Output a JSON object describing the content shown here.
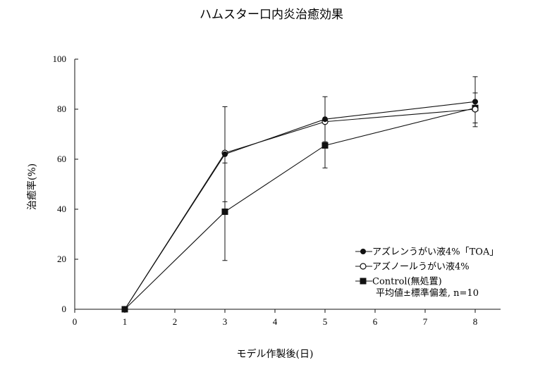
{
  "chart_data": {
    "type": "line",
    "title": "ハムスター口内炎治癒効果",
    "xlabel": "モデル作製後(日)",
    "ylabel": "治癒率(%)",
    "xlim": [
      0,
      8.5
    ],
    "ylim": [
      0,
      105
    ],
    "xticks": [
      0,
      1,
      2,
      3,
      4,
      5,
      6,
      7,
      8
    ],
    "yticks": [
      0,
      20,
      40,
      60,
      80,
      100
    ],
    "x": [
      1,
      3,
      5,
      8
    ],
    "grid": false,
    "legend_position": "bottom-right",
    "series": [
      {
        "name": "アズレンうがい液4%「TOA」",
        "marker": "filled-circle",
        "values": [
          0,
          62,
          76,
          83
        ],
        "errors": [
          0,
          19,
          9,
          10
        ]
      },
      {
        "name": "アズノールうがい液4%",
        "marker": "open-circle",
        "values": [
          0,
          62.5,
          75,
          80
        ],
        "errors": [
          0,
          0,
          0,
          0
        ]
      },
      {
        "name": "Control(無処置)",
        "marker": "filled-square",
        "values": [
          0,
          39,
          65.5,
          80.5
        ],
        "errors": [
          0,
          19.5,
          9,
          6
        ]
      }
    ],
    "note": "平均値±標準偏差, n=10"
  }
}
